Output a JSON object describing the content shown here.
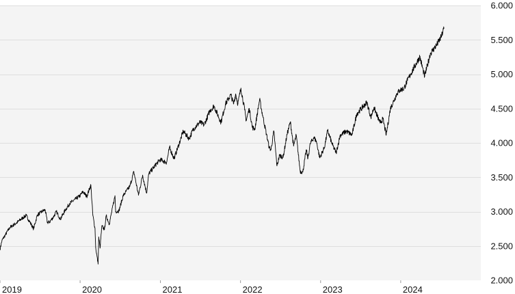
{
  "chart_data": {
    "type": "line",
    "title": "",
    "xlabel": "",
    "ylabel": "",
    "x_axis": {
      "range": [
        "2019-01-01",
        "2024-12-31"
      ],
      "tick_labels": [
        "2019",
        "2020",
        "2021",
        "2022",
        "2023",
        "2024"
      ],
      "tick_dates": [
        "2019-01-01",
        "2020-01-01",
        "2021-01-01",
        "2022-01-01",
        "2023-01-01",
        "2024-01-01"
      ]
    },
    "y_axis": {
      "position": "right",
      "range": [
        2000,
        6000
      ],
      "tick_values": [
        2000,
        2500,
        3000,
        3500,
        4000,
        4500,
        5000,
        5500,
        6000
      ],
      "tick_labels": [
        "2.000",
        "2.500",
        "3.000",
        "3.500",
        "4.000",
        "4.500",
        "5.000",
        "5.500",
        "6.000"
      ]
    },
    "grid": {
      "horizontal": true,
      "vertical": false
    },
    "plot_background": "#f4f4f4",
    "line_color": "#000000",
    "series": [
      {
        "points": [
          [
            "2019-01-01",
            2450
          ],
          [
            "2019-01-10",
            2580
          ],
          [
            "2019-01-25",
            2660
          ],
          [
            "2019-02-15",
            2770
          ],
          [
            "2019-03-15",
            2830
          ],
          [
            "2019-04-15",
            2910
          ],
          [
            "2019-04-30",
            2945
          ],
          [
            "2019-05-15",
            2860
          ],
          [
            "2019-06-03",
            2750
          ],
          [
            "2019-06-20",
            2950
          ],
          [
            "2019-07-15",
            3010
          ],
          [
            "2019-07-26",
            3025
          ],
          [
            "2019-08-05",
            2840
          ],
          [
            "2019-08-15",
            2850
          ],
          [
            "2019-09-01",
            2920
          ],
          [
            "2019-09-15",
            3000
          ],
          [
            "2019-10-03",
            2890
          ],
          [
            "2019-10-25",
            3020
          ],
          [
            "2019-11-15",
            3120
          ],
          [
            "2019-12-15",
            3190
          ],
          [
            "2019-12-31",
            3230
          ],
          [
            "2020-01-15",
            3290
          ],
          [
            "2020-01-31",
            3220
          ],
          [
            "2020-02-19",
            3386
          ],
          [
            "2020-02-28",
            2950
          ],
          [
            "2020-03-09",
            2750
          ],
          [
            "2020-03-12",
            2480
          ],
          [
            "2020-03-16",
            2390
          ],
          [
            "2020-03-23",
            2237
          ],
          [
            "2020-03-26",
            2630
          ],
          [
            "2020-04-01",
            2470
          ],
          [
            "2020-04-09",
            2790
          ],
          [
            "2020-04-21",
            2740
          ],
          [
            "2020-04-29",
            2940
          ],
          [
            "2020-05-13",
            2820
          ],
          [
            "2020-06-08",
            3230
          ],
          [
            "2020-06-11",
            3000
          ],
          [
            "2020-06-26",
            3010
          ],
          [
            "2020-07-15",
            3230
          ],
          [
            "2020-08-15",
            3370
          ],
          [
            "2020-09-02",
            3580
          ],
          [
            "2020-09-23",
            3240
          ],
          [
            "2020-10-12",
            3530
          ],
          [
            "2020-10-30",
            3270
          ],
          [
            "2020-11-09",
            3550
          ],
          [
            "2020-12-15",
            3700
          ],
          [
            "2020-12-31",
            3756
          ],
          [
            "2021-01-29",
            3715
          ],
          [
            "2021-02-12",
            3935
          ],
          [
            "2021-03-04",
            3770
          ],
          [
            "2021-03-26",
            3975
          ],
          [
            "2021-04-15",
            4170
          ],
          [
            "2021-05-12",
            4060
          ],
          [
            "2021-05-31",
            4200
          ],
          [
            "2021-06-30",
            4300
          ],
          [
            "2021-07-19",
            4260
          ],
          [
            "2021-08-15",
            4470
          ],
          [
            "2021-09-02",
            4537
          ],
          [
            "2021-10-04",
            4300
          ],
          [
            "2021-10-25",
            4570
          ],
          [
            "2021-11-18",
            4700
          ],
          [
            "2021-11-30",
            4567
          ],
          [
            "2021-12-10",
            4712
          ],
          [
            "2021-12-20",
            4568
          ],
          [
            "2022-01-03",
            4796
          ],
          [
            "2022-01-20",
            4480
          ],
          [
            "2022-01-27",
            4326
          ],
          [
            "2022-02-10",
            4500
          ],
          [
            "2022-02-24",
            4225
          ],
          [
            "2022-03-07",
            4200
          ],
          [
            "2022-03-29",
            4631
          ],
          [
            "2022-04-12",
            4400
          ],
          [
            "2022-04-29",
            4130
          ],
          [
            "2022-05-12",
            3930
          ],
          [
            "2022-05-20",
            3900
          ],
          [
            "2022-06-02",
            4170
          ],
          [
            "2022-06-16",
            3666
          ],
          [
            "2022-06-28",
            3820
          ],
          [
            "2022-07-14",
            3790
          ],
          [
            "2022-08-01",
            4120
          ],
          [
            "2022-08-16",
            4305
          ],
          [
            "2022-08-31",
            3955
          ],
          [
            "2022-09-12",
            4110
          ],
          [
            "2022-09-30",
            3585
          ],
          [
            "2022-10-12",
            3577
          ],
          [
            "2022-10-28",
            3900
          ],
          [
            "2022-11-04",
            3770
          ],
          [
            "2022-11-15",
            3990
          ],
          [
            "2022-12-01",
            4080
          ],
          [
            "2022-12-13",
            4020
          ],
          [
            "2022-12-28",
            3783
          ],
          [
            "2023-01-18",
            3930
          ],
          [
            "2023-02-02",
            4180
          ],
          [
            "2023-02-24",
            3970
          ],
          [
            "2023-03-13",
            3855
          ],
          [
            "2023-03-31",
            4110
          ],
          [
            "2023-04-28",
            4170
          ],
          [
            "2023-05-24",
            4115
          ],
          [
            "2023-06-15",
            4425
          ],
          [
            "2023-07-31",
            4589
          ],
          [
            "2023-08-18",
            4370
          ],
          [
            "2023-09-01",
            4515
          ],
          [
            "2023-09-29",
            4290
          ],
          [
            "2023-10-12",
            4350
          ],
          [
            "2023-10-27",
            4117
          ],
          [
            "2023-11-15",
            4500
          ],
          [
            "2023-12-15",
            4720
          ],
          [
            "2023-12-29",
            4770
          ],
          [
            "2024-01-15",
            4790
          ],
          [
            "2024-02-01",
            4910
          ],
          [
            "2024-02-15",
            5000
          ],
          [
            "2024-03-28",
            5254
          ],
          [
            "2024-04-19",
            4967
          ],
          [
            "2024-05-15",
            5300
          ],
          [
            "2024-06-14",
            5430
          ],
          [
            "2024-07-03",
            5537
          ],
          [
            "2024-07-16",
            5667
          ]
        ]
      }
    ]
  }
}
